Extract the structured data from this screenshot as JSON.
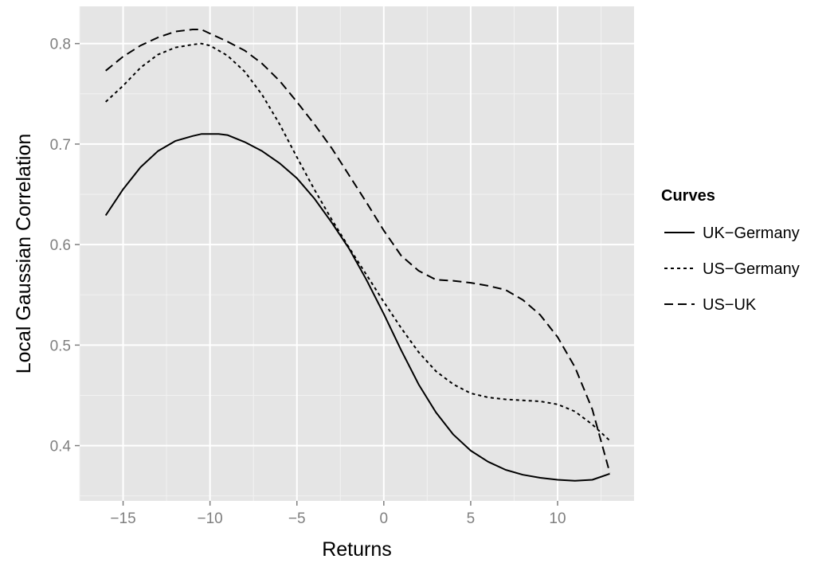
{
  "chart_data": {
    "type": "line",
    "xlabel": "Returns",
    "ylabel": "Local Gaussian Correlation",
    "xlim": [
      -17.5,
      14.4
    ],
    "ylim": [
      0.345,
      0.837
    ],
    "x_ticks": [
      -15,
      -10,
      -5,
      0,
      5,
      10
    ],
    "x_tick_labels": [
      "−15",
      "−10",
      "−5",
      "0",
      "5",
      "10"
    ],
    "y_ticks": [
      0.4,
      0.5,
      0.6,
      0.7,
      0.8
    ],
    "y_tick_labels": [
      "0.4",
      "0.5",
      "0.6",
      "0.7",
      "0.8"
    ],
    "grid": true,
    "background": "#e5e5e5",
    "legend": {
      "title": "Curves",
      "position": "right"
    },
    "series": [
      {
        "name": "UK−Germany",
        "linetype": "solid",
        "color": "#000000",
        "x": [
          -16,
          -15,
          -14,
          -13,
          -12,
          -11,
          -10.5,
          -10,
          -9.5,
          -9,
          -8,
          -7,
          -6,
          -5,
          -4,
          -3,
          -2,
          -1,
          0,
          1,
          2,
          3,
          4,
          5,
          6,
          7,
          8,
          9,
          10,
          11,
          12,
          13
        ],
        "y": [
          0.629,
          0.655,
          0.677,
          0.693,
          0.703,
          0.708,
          0.71,
          0.71,
          0.71,
          0.709,
          0.702,
          0.693,
          0.681,
          0.666,
          0.646,
          0.622,
          0.596,
          0.565,
          0.531,
          0.495,
          0.461,
          0.433,
          0.411,
          0.395,
          0.384,
          0.376,
          0.371,
          0.368,
          0.366,
          0.365,
          0.366,
          0.372
        ]
      },
      {
        "name": "US−Germany",
        "linetype": "dotted",
        "color": "#000000",
        "x": [
          -16,
          -15,
          -14,
          -13,
          -12,
          -11,
          -10.5,
          -10,
          -9,
          -8,
          -7,
          -6,
          -5,
          -4,
          -3,
          -2,
          -1,
          0,
          1,
          2,
          3,
          4,
          5,
          6,
          7,
          8,
          9,
          10,
          11,
          12,
          13
        ],
        "y": [
          0.742,
          0.758,
          0.776,
          0.789,
          0.796,
          0.799,
          0.8,
          0.798,
          0.788,
          0.772,
          0.749,
          0.72,
          0.687,
          0.655,
          0.625,
          0.597,
          0.57,
          0.543,
          0.517,
          0.493,
          0.474,
          0.461,
          0.452,
          0.448,
          0.446,
          0.445,
          0.444,
          0.441,
          0.434,
          0.421,
          0.405
        ]
      },
      {
        "name": "US−UK",
        "linetype": "dashed",
        "color": "#000000",
        "x": [
          -16,
          -15,
          -14,
          -13,
          -12,
          -11,
          -10.5,
          -10,
          -9,
          -8,
          -7,
          -6,
          -5,
          -4,
          -3,
          -2,
          -1,
          0,
          1,
          2,
          3,
          4,
          5,
          6,
          7,
          8,
          9,
          10,
          11,
          12,
          13
        ],
        "y": [
          0.773,
          0.787,
          0.798,
          0.806,
          0.812,
          0.814,
          0.814,
          0.81,
          0.802,
          0.793,
          0.78,
          0.763,
          0.742,
          0.72,
          0.696,
          0.669,
          0.642,
          0.614,
          0.589,
          0.574,
          0.565,
          0.564,
          0.562,
          0.559,
          0.555,
          0.545,
          0.53,
          0.508,
          0.478,
          0.436,
          0.373
        ]
      }
    ]
  }
}
